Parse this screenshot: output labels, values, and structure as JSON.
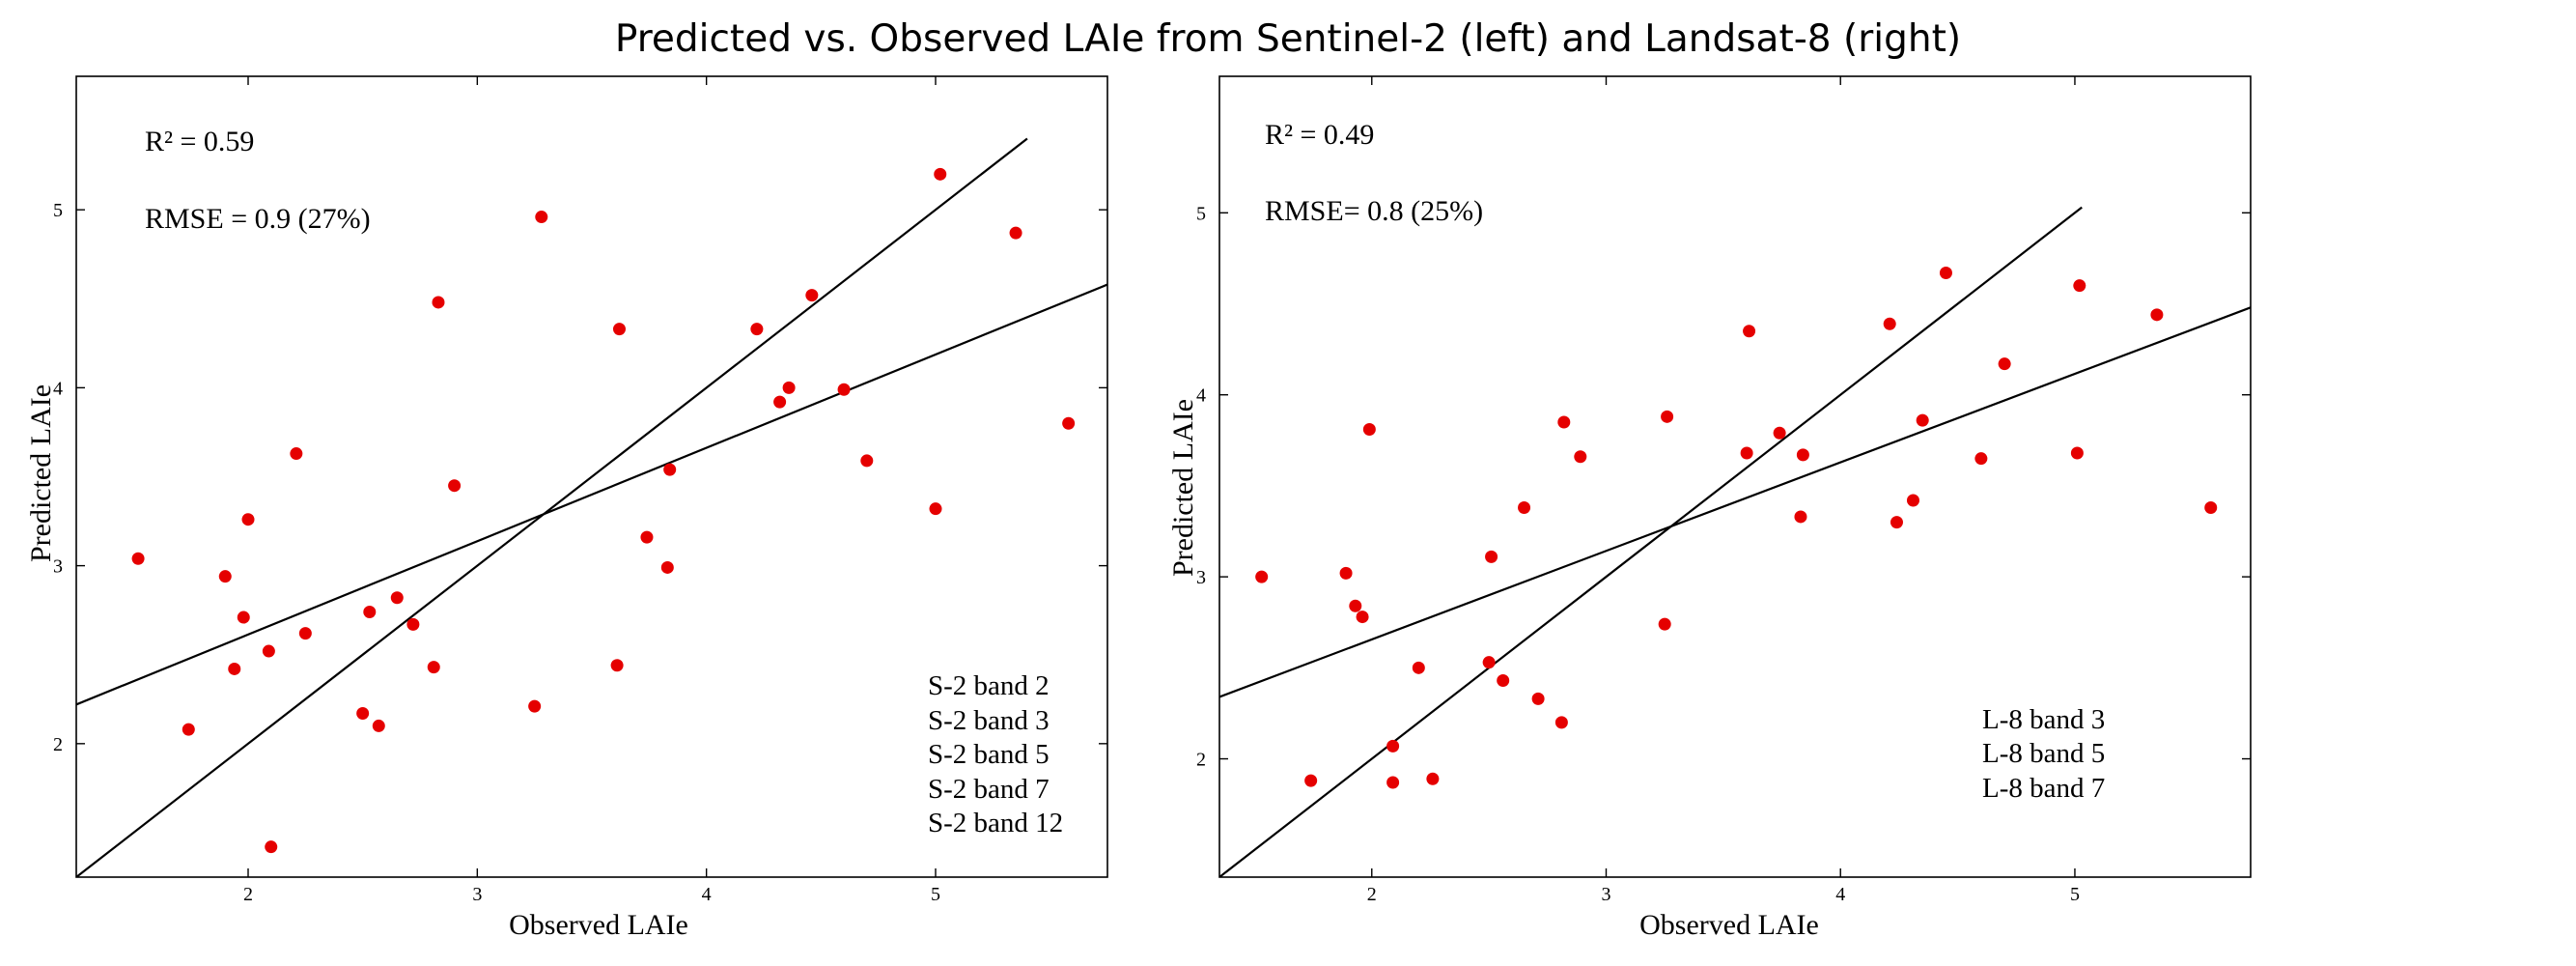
{
  "figure_title": "Predicted vs. Observed LAIe from Sentinel-2 (left) and Landsat-8 (right)",
  "colors": {
    "points": "#e50000",
    "lines": "#000000",
    "background": "#ffffff"
  },
  "chart_data": [
    {
      "type": "scatter",
      "title": "Sentinel-2",
      "xlabel": "Observed LAIe",
      "ylabel": "Predicted LAIe",
      "xlim": [
        1.25,
        5.75
      ],
      "ylim": [
        1.25,
        5.75
      ],
      "xticks": [
        "2",
        "3",
        "4",
        "5"
      ],
      "yticks": [
        "2",
        "3",
        "4",
        "5"
      ],
      "annotations": {
        "r2": "R² = 0.59",
        "rmse": "RMSE = 0.9 (27%)"
      },
      "legend": [
        "S-2 band 2",
        "S-2 band 3",
        "S-2 band 5",
        "S-2 band 7",
        "S-2 band 12"
      ],
      "one_to_one_line": {
        "from": [
          1.25,
          1.25
        ],
        "to": [
          5.4,
          5.4
        ]
      },
      "regression_line": {
        "from": [
          1.25,
          2.22
        ],
        "to": [
          5.75,
          4.58
        ]
      },
      "points": [
        [
          1.52,
          3.04
        ],
        [
          1.74,
          2.08
        ],
        [
          1.9,
          2.94
        ],
        [
          1.94,
          2.42
        ],
        [
          1.98,
          2.71
        ],
        [
          2.0,
          3.26
        ],
        [
          2.09,
          2.52
        ],
        [
          2.1,
          1.42
        ],
        [
          2.21,
          3.63
        ],
        [
          2.25,
          2.62
        ],
        [
          2.5,
          2.17
        ],
        [
          2.53,
          2.74
        ],
        [
          2.57,
          2.1
        ],
        [
          2.65,
          2.82
        ],
        [
          2.72,
          2.67
        ],
        [
          2.81,
          2.43
        ],
        [
          2.83,
          4.48
        ],
        [
          2.9,
          3.45
        ],
        [
          3.25,
          2.21
        ],
        [
          3.28,
          4.96
        ],
        [
          3.61,
          2.44
        ],
        [
          3.62,
          4.33
        ],
        [
          3.74,
          3.16
        ],
        [
          3.83,
          2.99
        ],
        [
          3.84,
          3.54
        ],
        [
          4.22,
          4.33
        ],
        [
          4.32,
          3.92
        ],
        [
          4.36,
          4.0
        ],
        [
          4.46,
          4.52
        ],
        [
          4.6,
          3.99
        ],
        [
          4.7,
          3.59
        ],
        [
          5.0,
          3.32
        ],
        [
          5.02,
          5.2
        ],
        [
          5.35,
          4.87
        ],
        [
          5.58,
          3.8
        ]
      ]
    },
    {
      "type": "scatter",
      "title": "Landsat-8",
      "xlabel": "Observed LAIe",
      "ylabel": "Predicted LAIe",
      "xlim": [
        1.35,
        5.75
      ],
      "ylim": [
        1.35,
        5.75
      ],
      "xticks": [
        "2",
        "3",
        "4",
        "5"
      ],
      "yticks": [
        "2",
        "3",
        "4",
        "5"
      ],
      "annotations": {
        "r2": "R² = 0.49",
        "rmse": "RMSE= 0.8 (25%)"
      },
      "legend": [
        "L-8 band 3",
        "L-8 band 5",
        "L-8 band 7"
      ],
      "one_to_one_line": {
        "from": [
          1.35,
          1.35
        ],
        "to": [
          5.03,
          5.03
        ]
      },
      "regression_line": {
        "from": [
          1.35,
          2.34
        ],
        "to": [
          5.75,
          4.48
        ]
      },
      "points": [
        [
          1.53,
          3.0
        ],
        [
          1.74,
          1.88
        ],
        [
          1.89,
          3.02
        ],
        [
          1.93,
          2.84
        ],
        [
          1.96,
          2.78
        ],
        [
          1.99,
          3.81
        ],
        [
          2.09,
          2.07
        ],
        [
          2.09,
          1.87
        ],
        [
          2.2,
          2.5
        ],
        [
          2.26,
          1.89
        ],
        [
          2.5,
          2.53
        ],
        [
          2.51,
          3.11
        ],
        [
          2.56,
          2.43
        ],
        [
          2.65,
          3.38
        ],
        [
          2.71,
          2.33
        ],
        [
          2.81,
          2.2
        ],
        [
          2.82,
          3.85
        ],
        [
          2.89,
          3.66
        ],
        [
          3.25,
          2.74
        ],
        [
          3.26,
          3.88
        ],
        [
          3.6,
          3.68
        ],
        [
          3.61,
          4.35
        ],
        [
          3.74,
          3.79
        ],
        [
          3.83,
          3.33
        ],
        [
          3.84,
          3.67
        ],
        [
          4.21,
          4.39
        ],
        [
          4.24,
          3.3
        ],
        [
          4.31,
          3.42
        ],
        [
          4.35,
          3.86
        ],
        [
          4.45,
          4.67
        ],
        [
          4.6,
          3.65
        ],
        [
          4.7,
          4.17
        ],
        [
          5.01,
          3.68
        ],
        [
          5.02,
          4.6
        ],
        [
          5.35,
          4.44
        ],
        [
          5.58,
          3.38
        ]
      ]
    }
  ]
}
